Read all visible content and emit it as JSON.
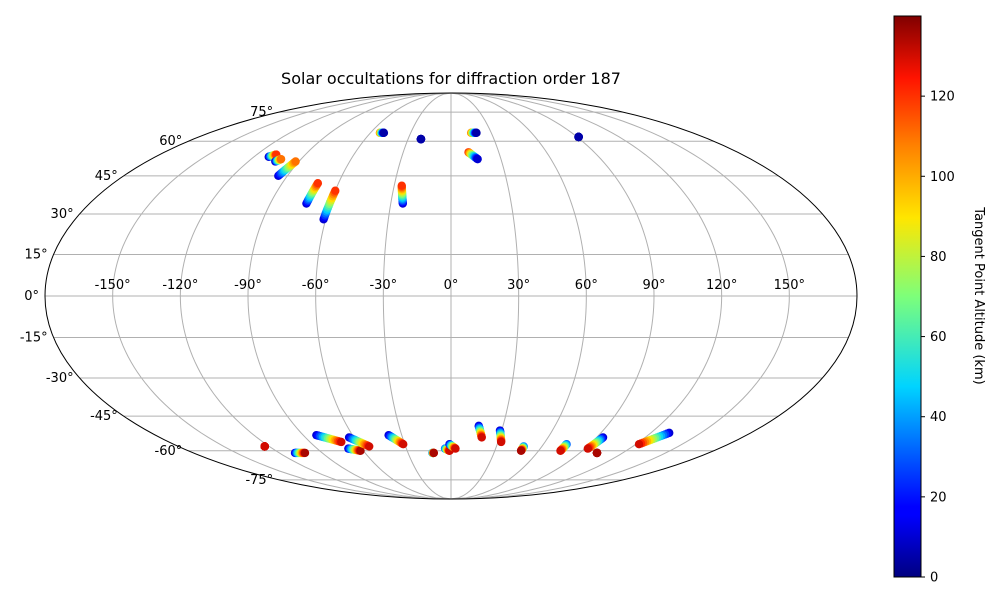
{
  "chart_data": {
    "type": "scatter",
    "title": "Solar occultations for diffraction order 187",
    "projection": "mollweide",
    "grid": true,
    "longitude_ticks": [
      "-150°",
      "-120°",
      "-90°",
      "-60°",
      "-30°",
      "0°",
      "30°",
      "60°",
      "90°",
      "120°",
      "150°"
    ],
    "latitude_ticks": [
      "-75°",
      "-60°",
      "-45°",
      "-30°",
      "-15°",
      "0°",
      "15°",
      "30°",
      "45°",
      "60°",
      "75°"
    ],
    "colorbar": {
      "label": "Tangent Point Altitude (km)",
      "colormap": "jet",
      "range": [
        0,
        140
      ],
      "ticks": [
        "0",
        "20",
        "40",
        "60",
        "80",
        "100",
        "120"
      ]
    },
    "tracks": [
      {
        "lon_start": -111,
        "lat_start": 53,
        "lon_end": -108,
        "lat_end": 54,
        "alt_start": 5,
        "alt_end": 120
      },
      {
        "lon_start": -104,
        "lat_start": 51,
        "lon_end": -102,
        "lat_end": 52,
        "alt_start": 5,
        "alt_end": 110
      },
      {
        "lon_start": -95,
        "lat_start": 45,
        "lon_end": -92,
        "lat_end": 51,
        "alt_start": 10,
        "alt_end": 110
      },
      {
        "lon_start": -72,
        "lat_start": 34,
        "lon_end": -71,
        "lat_end": 42,
        "alt_start": 10,
        "alt_end": 120
      },
      {
        "lon_start": -61,
        "lat_start": 28,
        "lon_end": -60,
        "lat_end": 39,
        "alt_start": 10,
        "alt_end": 120
      },
      {
        "lon_start": -53,
        "lat_start": 64,
        "lon_end": -50,
        "lat_end": 64,
        "alt_start": 110,
        "alt_end": 5
      },
      {
        "lon_start": -24,
        "lat_start": 34,
        "lon_end": -26,
        "lat_end": 41,
        "alt_start": 10,
        "alt_end": 120
      },
      {
        "lon_start": -21,
        "lat_start": 61,
        "lon_end": -21,
        "lat_end": 61,
        "alt_start": 5,
        "alt_end": 5
      },
      {
        "lon_start": 11,
        "lat_start": 55,
        "lon_end": 16,
        "lat_end": 52,
        "alt_start": 120,
        "alt_end": 10
      },
      {
        "lon_start": 15,
        "lat_start": 64,
        "lon_end": 19,
        "lat_end": 64,
        "alt_start": 110,
        "alt_end": 5
      },
      {
        "lon_start": 91,
        "lat_start": 62,
        "lon_end": 91,
        "lat_end": 62,
        "alt_start": 5,
        "alt_end": 5
      },
      {
        "lon_start": -123,
        "lat_start": -58,
        "lon_end": -123,
        "lat_end": -58,
        "alt_start": 130,
        "alt_end": 130
      },
      {
        "lon_start": -109,
        "lat_start": -61,
        "lon_end": -102,
        "lat_end": -61,
        "alt_start": 10,
        "alt_end": 135
      },
      {
        "lon_start": -82,
        "lat_start": -53,
        "lon_end": -70,
        "lat_end": -56,
        "alt_start": 10,
        "alt_end": 130
      },
      {
        "lon_start": -69,
        "lat_start": -59,
        "lon_end": -62,
        "lat_end": -60,
        "alt_start": 10,
        "alt_end": 135
      },
      {
        "lon_start": -63,
        "lat_start": -54,
        "lon_end": -54,
        "lat_end": -58,
        "alt_start": 10,
        "alt_end": 130
      },
      {
        "lon_start": -38,
        "lat_start": -53,
        "lon_end": -31,
        "lat_end": -57,
        "alt_start": 10,
        "alt_end": 130
      },
      {
        "lon_start": -13,
        "lat_start": -61,
        "lon_end": -12,
        "lat_end": -61,
        "alt_start": 30,
        "alt_end": 135
      },
      {
        "lon_start": -4,
        "lat_start": -59,
        "lon_end": -1,
        "lat_end": -60,
        "alt_start": 30,
        "alt_end": 130
      },
      {
        "lon_start": -1,
        "lat_start": -57,
        "lon_end": 3,
        "lat_end": -59,
        "alt_start": 10,
        "alt_end": 130
      },
      {
        "lon_start": 16,
        "lat_start": -49,
        "lon_end": 19,
        "lat_end": -54,
        "alt_start": 10,
        "alt_end": 130
      },
      {
        "lon_start": 29,
        "lat_start": -51,
        "lon_end": 32,
        "lat_end": -56,
        "alt_start": 10,
        "alt_end": 130
      },
      {
        "lon_start": 48,
        "lat_start": -58,
        "lon_end": 48,
        "lat_end": -60,
        "alt_start": 30,
        "alt_end": 135
      },
      {
        "lon_start": 75,
        "lat_start": -57,
        "lon_end": 75,
        "lat_end": -60,
        "alt_start": 30,
        "alt_end": 130
      },
      {
        "lon_start": 94,
        "lat_start": -54,
        "lon_end": 92,
        "lat_end": -59,
        "alt_start": 10,
        "alt_end": 130
      },
      {
        "lon_start": 102,
        "lat_start": -61,
        "lon_end": 102,
        "lat_end": -61,
        "alt_start": 135,
        "alt_end": 135
      },
      {
        "lon_start": 131,
        "lat_start": -52,
        "lon_end": 122,
        "lat_end": -57,
        "alt_start": 10,
        "alt_end": 130
      }
    ]
  }
}
